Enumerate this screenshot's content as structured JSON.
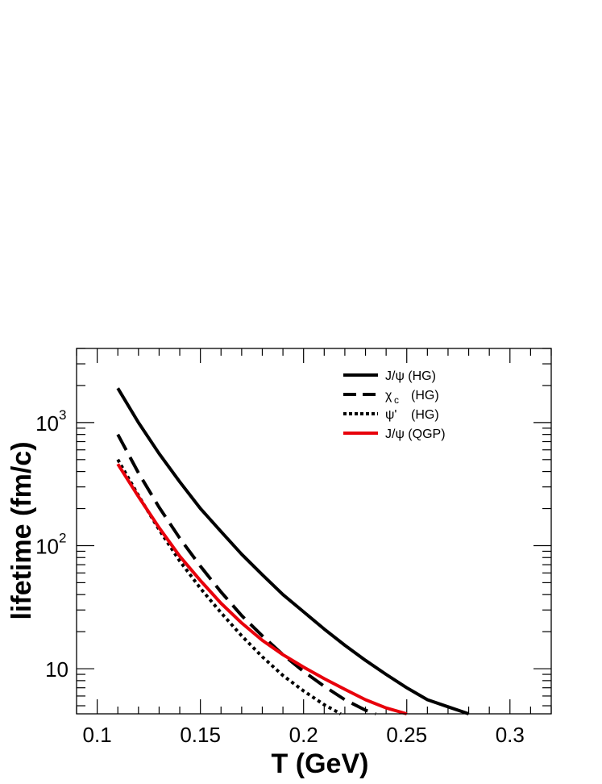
{
  "chart_data": {
    "type": "line",
    "title": "",
    "xlabel": "T (GeV)",
    "ylabel": "lifetime (fm/c)",
    "xlim": [
      0.09,
      0.32
    ],
    "ylim": [
      4.3,
      4000
    ],
    "yscale": "log",
    "x_ticks": [
      {
        "value": 0.1,
        "label": "0.1"
      },
      {
        "value": 0.15,
        "label": "0.15"
      },
      {
        "value": 0.2,
        "label": "0.2"
      },
      {
        "value": 0.25,
        "label": "0.25"
      },
      {
        "value": 0.3,
        "label": "0.3"
      }
    ],
    "y_ticks": [
      {
        "value": 10,
        "label": "10",
        "sup": ""
      },
      {
        "value": 100,
        "label": "10",
        "sup": "2"
      },
      {
        "value": 1000,
        "label": "10",
        "sup": "3"
      }
    ],
    "legend_position": "top-right",
    "series": [
      {
        "name": "J/ψ (HG)",
        "color": "#000000",
        "dash": "solid",
        "x": [
          0.11,
          0.12,
          0.13,
          0.14,
          0.15,
          0.16,
          0.17,
          0.18,
          0.19,
          0.2,
          0.21,
          0.22,
          0.23,
          0.24,
          0.25,
          0.26,
          0.27,
          0.28
        ],
        "y": [
          1900,
          1000,
          560,
          330,
          200,
          130,
          85,
          58,
          40,
          29,
          21,
          15.5,
          11.7,
          9.0,
          7.0,
          5.6,
          4.9,
          4.3
        ]
      },
      {
        "name": "χc (HG)",
        "name_main": "χ",
        "name_sub": "c",
        "name_suffix": "(HG)",
        "color": "#000000",
        "dash": "long-dash",
        "x": [
          0.11,
          0.12,
          0.13,
          0.14,
          0.15,
          0.16,
          0.17,
          0.18,
          0.19,
          0.2,
          0.21,
          0.22,
          0.23,
          0.235
        ],
        "y": [
          800,
          390,
          205,
          115,
          68,
          42,
          27,
          18.5,
          13,
          9.5,
          7.2,
          5.6,
          4.6,
          4.3
        ]
      },
      {
        "name": "ψ' (HG)",
        "name_main": "ψ'",
        "name_suffix": "(HG)",
        "color": "#000000",
        "dash": "dotted",
        "x": [
          0.11,
          0.12,
          0.13,
          0.14,
          0.15,
          0.16,
          0.17,
          0.18,
          0.19,
          0.2,
          0.21,
          0.218
        ],
        "y": [
          500,
          255,
          135,
          75,
          45,
          28.5,
          18.5,
          12.5,
          8.8,
          6.6,
          5.1,
          4.3
        ]
      },
      {
        "name": "J/ψ (QGP)",
        "color": "#e8000b",
        "dash": "solid",
        "x": [
          0.11,
          0.12,
          0.13,
          0.14,
          0.15,
          0.16,
          0.17,
          0.18,
          0.19,
          0.2,
          0.21,
          0.22,
          0.23,
          0.24,
          0.25
        ],
        "y": [
          460,
          250,
          140,
          82,
          52,
          34,
          23.5,
          17,
          13,
          10.3,
          8.3,
          6.8,
          5.6,
          4.8,
          4.3
        ]
      }
    ]
  }
}
